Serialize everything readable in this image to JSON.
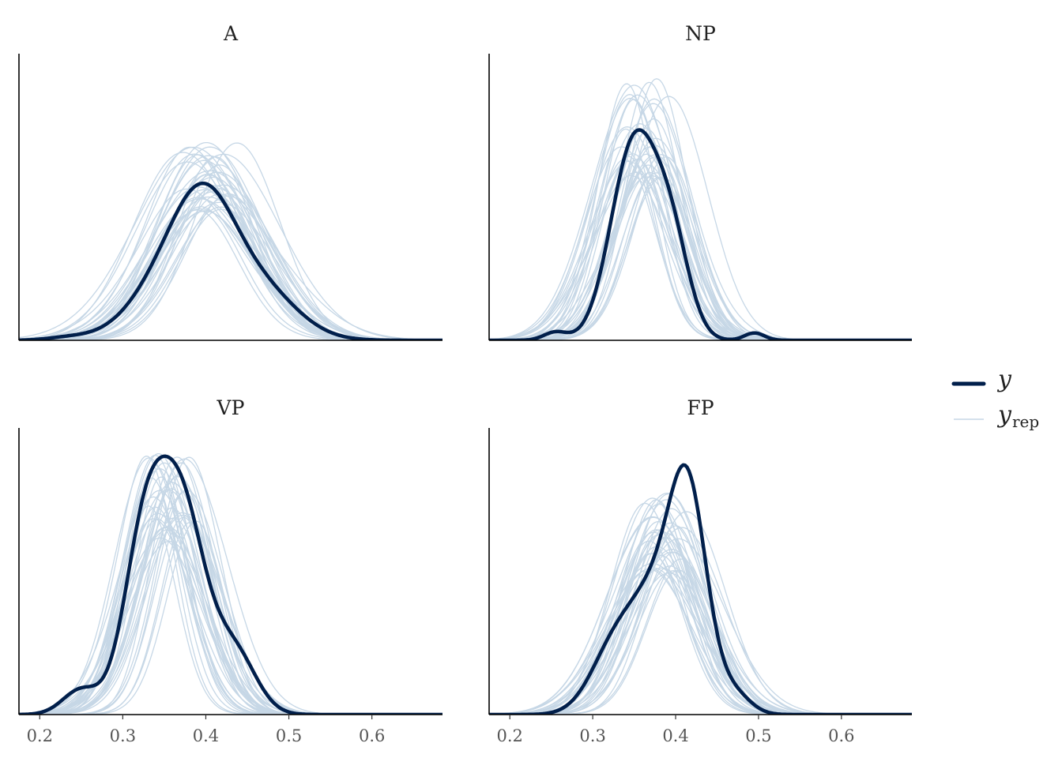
{
  "chart_data": {
    "type": "line",
    "subtype": "density_overlay",
    "xlim": [
      0.175,
      0.685
    ],
    "x_ticks": [
      "0.2",
      "0.3",
      "0.4",
      "0.5",
      "0.6"
    ],
    "x_tick_values": [
      0.2,
      0.3,
      0.4,
      0.5,
      0.6
    ],
    "ylim": [
      0,
      7.8
    ],
    "y_axis_labels": false,
    "legend": {
      "position": "right",
      "items": [
        {
          "label": "y",
          "subscript": "",
          "color": "#011F4B",
          "style": "thick"
        },
        {
          "label": "y",
          "subscript": "rep",
          "color": "#C6D7E6",
          "style": "thin"
        }
      ]
    },
    "colors": {
      "y": "#011F4B",
      "yrep": "#C6D7E6",
      "axis": "#000000"
    },
    "n_replicates": 40,
    "panels": [
      {
        "title": "A",
        "y_components": [
          [
            0.235,
            0.025,
            0.07
          ],
          [
            0.37,
            0.05,
            2.1
          ],
          [
            0.4,
            0.036,
            2.05
          ],
          [
            0.465,
            0.045,
            1.3
          ]
        ],
        "yrep_center": 0.405,
        "yrep_sd": 0.062,
        "yrep_peak": 4.9,
        "seed": 11
      },
      {
        "title": "NP",
        "y_components": [
          [
            0.255,
            0.014,
            0.22
          ],
          [
            0.35,
            0.028,
            5.35
          ],
          [
            0.395,
            0.022,
            2.4
          ],
          [
            0.495,
            0.012,
            0.2
          ]
        ],
        "yrep_center": 0.362,
        "yrep_sd": 0.043,
        "yrep_peak": 6.5,
        "seed": 23
      },
      {
        "title": "VP",
        "y_components": [
          [
            0.25,
            0.022,
            0.68
          ],
          [
            0.325,
            0.025,
            4.3
          ],
          [
            0.37,
            0.029,
            5.6
          ],
          [
            0.435,
            0.026,
            1.6
          ]
        ],
        "yrep_center": 0.357,
        "yrep_sd": 0.042,
        "yrep_peak": 6.6,
        "seed": 37
      },
      {
        "title": "FP",
        "y_components": [
          [
            0.33,
            0.03,
            2.0
          ],
          [
            0.375,
            0.026,
            2.4
          ],
          [
            0.415,
            0.023,
            5.9
          ],
          [
            0.47,
            0.02,
            0.55
          ]
        ],
        "yrep_center": 0.39,
        "yrep_sd": 0.05,
        "yrep_peak": 5.5,
        "seed": 51
      }
    ]
  }
}
